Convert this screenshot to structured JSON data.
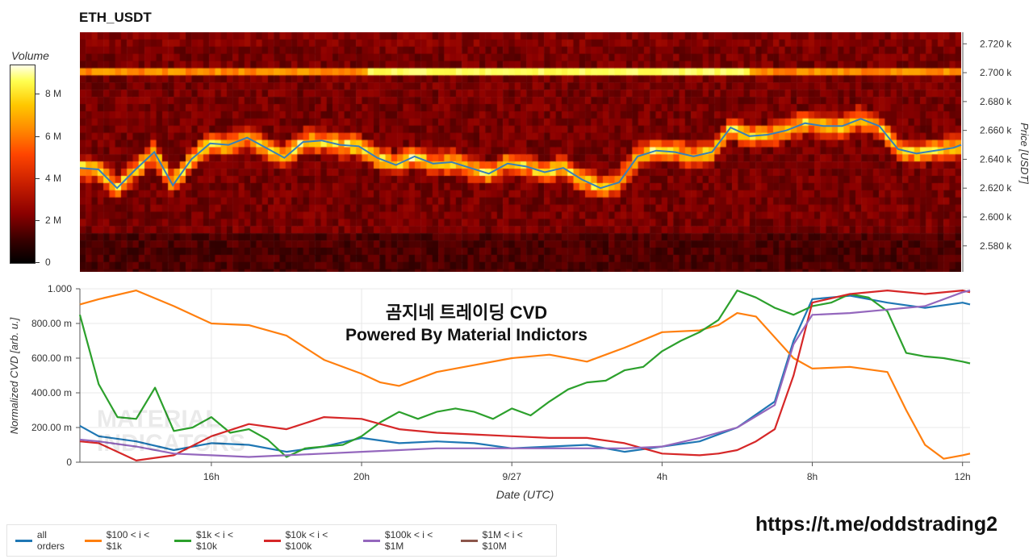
{
  "chart_data": [
    {
      "type": "heatmap",
      "title": "ETH_USDT",
      "ylabel": "Price [USDT]",
      "ylim": [
        2562,
        2728
      ],
      "y_ticks": [
        "2.720 k",
        "2.700 k",
        "2.680 k",
        "2.660 k",
        "2.640 k",
        "2.620 k",
        "2.600 k",
        "2.580 k"
      ],
      "y_tick_values": [
        2720,
        2700,
        2680,
        2660,
        2640,
        2620,
        2600,
        2580
      ],
      "colorbar": {
        "label": "Volume",
        "ticks": [
          "0",
          "2 M",
          "4 M",
          "6 M",
          "8 M"
        ],
        "tick_values": [
          0,
          2,
          4,
          6,
          8
        ],
        "max": 9.4
      },
      "x_range": [
        12.5,
        36.2
      ],
      "price_line": {
        "x": [
          12.5,
          13.0,
          13.5,
          14.0,
          14.5,
          15.0,
          15.5,
          16.0,
          16.5,
          17.0,
          17.5,
          18.0,
          18.5,
          19.0,
          19.5,
          20.0,
          20.5,
          21.0,
          21.5,
          22.0,
          22.5,
          23.0,
          23.5,
          24.0,
          24.5,
          25.0,
          25.5,
          26.0,
          26.5,
          27.0,
          27.5,
          28.0,
          28.5,
          29.0,
          29.5,
          30.0,
          30.5,
          31.0,
          31.5,
          32.0,
          32.5,
          33.0,
          33.5,
          34.0,
          34.5,
          35.0,
          35.5,
          36.0,
          36.2
        ],
        "y": [
          2634,
          2633,
          2620,
          2633,
          2645,
          2622,
          2640,
          2651,
          2650,
          2655,
          2648,
          2641,
          2652,
          2653,
          2650,
          2649,
          2641,
          2636,
          2642,
          2637,
          2638,
          2634,
          2630,
          2637,
          2635,
          2631,
          2634,
          2626,
          2620,
          2624,
          2642,
          2646,
          2645,
          2642,
          2645,
          2662,
          2656,
          2657,
          2660,
          2665,
          2663,
          2663,
          2668,
          2663,
          2647,
          2644,
          2646,
          2648,
          2650
        ]
      }
    },
    {
      "type": "line",
      "title": "곰지네 트레이딩 CVD",
      "subtitle": "Powered By Material Indictors",
      "xlabel": "Date (UTC)",
      "ylabel": "Normalized CVD [arb. u.]",
      "ylim": [
        0,
        1000
      ],
      "x_range": [
        12.5,
        36.2
      ],
      "x_ticks": [
        "16h",
        "20h",
        "9/27",
        "4h",
        "8h",
        "12h"
      ],
      "x_tick_values": [
        16,
        20,
        24,
        28,
        32,
        36
      ],
      "y_ticks": [
        "0",
        "200.00 m",
        "400.00 m",
        "600.00 m",
        "800.00 m",
        "1.000"
      ],
      "y_tick_values": [
        0,
        200,
        400,
        600,
        800,
        1000
      ],
      "series": [
        {
          "name": "all orders",
          "color": "#1f77b4",
          "x": [
            12.5,
            13,
            14,
            15,
            16,
            17,
            18,
            19,
            20,
            21,
            22,
            23,
            24,
            25,
            26,
            27,
            28,
            29,
            30,
            31,
            31.5,
            32,
            33,
            34,
            35,
            36,
            36.2
          ],
          "y": [
            210,
            150,
            120,
            70,
            110,
            100,
            60,
            90,
            140,
            110,
            120,
            110,
            80,
            90,
            100,
            60,
            90,
            120,
            200,
            350,
            700,
            940,
            960,
            920,
            890,
            920,
            910
          ]
        },
        {
          "name": "$100 < i < $1k",
          "color": "#ff7f0e",
          "x": [
            12.5,
            13,
            14,
            15,
            16,
            17,
            18,
            19,
            20,
            20.5,
            21,
            22,
            23,
            24,
            25,
            26,
            27,
            28,
            29,
            29.5,
            30,
            30.5,
            31,
            31.5,
            32,
            33,
            34,
            34.5,
            35,
            35.5,
            36,
            36.2
          ],
          "y": [
            910,
            940,
            990,
            900,
            800,
            790,
            730,
            590,
            510,
            460,
            440,
            520,
            560,
            600,
            620,
            580,
            660,
            750,
            760,
            790,
            860,
            840,
            720,
            600,
            540,
            550,
            520,
            300,
            100,
            20,
            40,
            50
          ]
        },
        {
          "name": "$1k < i < $10k",
          "color": "#2ca02c",
          "x": [
            12.5,
            13,
            13.5,
            14,
            14.5,
            15,
            15.5,
            16,
            16.5,
            17,
            17.5,
            18,
            18.5,
            19,
            19.5,
            20,
            20.5,
            21,
            21.5,
            22,
            22.5,
            23,
            23.5,
            24,
            24.5,
            25,
            25.5,
            26,
            26.5,
            27,
            27.5,
            28,
            28.5,
            29,
            29.5,
            30,
            30.5,
            31,
            31.5,
            32,
            32.5,
            33,
            33.5,
            34,
            34.5,
            35,
            35.5,
            36,
            36.2
          ],
          "y": [
            850,
            450,
            260,
            250,
            430,
            180,
            200,
            260,
            170,
            190,
            130,
            30,
            80,
            90,
            100,
            150,
            230,
            290,
            250,
            290,
            310,
            290,
            250,
            310,
            270,
            350,
            420,
            460,
            470,
            530,
            550,
            640,
            700,
            750,
            820,
            990,
            950,
            890,
            850,
            900,
            920,
            970,
            950,
            870,
            630,
            610,
            600,
            580,
            570
          ]
        },
        {
          "name": "$10k < i < $100k",
          "color": "#d62728",
          "x": [
            12.5,
            13,
            14,
            15,
            16,
            17,
            18,
            19,
            20,
            21,
            22,
            23,
            24,
            25,
            26,
            27,
            28,
            29,
            29.5,
            30,
            30.5,
            31,
            31.5,
            32,
            33,
            34,
            35,
            36,
            36.2
          ],
          "y": [
            120,
            110,
            10,
            40,
            150,
            220,
            190,
            260,
            250,
            190,
            170,
            160,
            150,
            140,
            140,
            110,
            50,
            40,
            50,
            70,
            120,
            190,
            500,
            920,
            970,
            990,
            970,
            990,
            980
          ]
        },
        {
          "name": "$100k < i < $1M",
          "color": "#9467bd",
          "x": [
            12.5,
            13,
            14,
            15,
            16,
            17,
            18,
            19,
            20,
            21,
            22,
            23,
            24,
            25,
            26,
            27,
            28,
            29,
            30,
            31,
            31.5,
            32,
            33,
            34,
            35,
            36,
            36.2
          ],
          "y": [
            130,
            120,
            90,
            50,
            40,
            30,
            40,
            50,
            60,
            70,
            80,
            80,
            80,
            80,
            80,
            80,
            90,
            140,
            200,
            330,
            680,
            850,
            860,
            880,
            900,
            980,
            990
          ]
        },
        {
          "name": "$1M < i < $10M",
          "color": "#8c564b",
          "x": [],
          "y": []
        }
      ]
    }
  ],
  "watermark": [
    "MATERIAL",
    "INDICATORS"
  ],
  "footer_link": "https://t.me/oddstrading2"
}
